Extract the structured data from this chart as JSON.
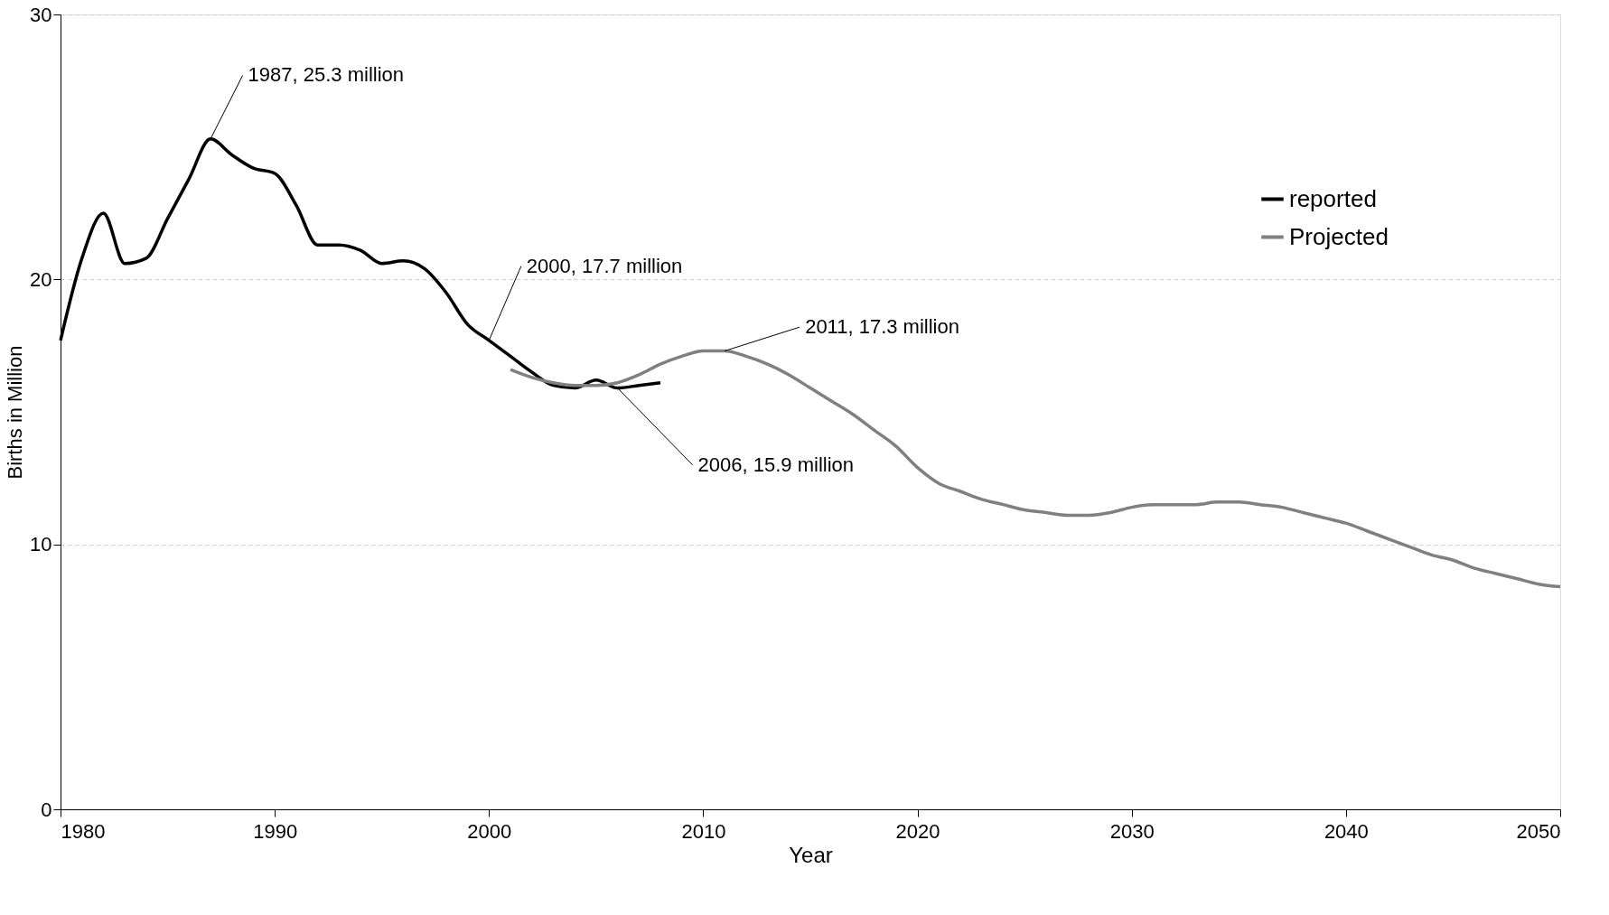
{
  "chart_data": {
    "type": "line",
    "xlabel": "Year",
    "ylabel": "Births in Million",
    "xlim": [
      1980,
      2050
    ],
    "xticks": [
      1980,
      1990,
      2000,
      2010,
      2020,
      2030,
      2040,
      2050
    ],
    "ylim": [
      0,
      30
    ],
    "yticks": [
      0,
      10,
      20,
      30
    ],
    "grid": "y",
    "legend": "top right",
    "marker": "none",
    "line_style": "solid",
    "series": [
      {
        "name": "reported",
        "color": "#000000",
        "x": [
          1980,
          1981,
          1982,
          1983,
          1984,
          1985,
          1986,
          1987,
          1988,
          1989,
          1990,
          1991,
          1992,
          1993,
          1994,
          1995,
          1996,
          1997,
          1998,
          1999,
          2000,
          2001,
          2002,
          2003,
          2004,
          2005,
          2006,
          2007,
          2008
        ],
        "values": [
          17.7,
          20.8,
          22.5,
          20.6,
          20.8,
          22.3,
          23.8,
          25.3,
          24.7,
          24.2,
          24.0,
          22.8,
          21.3,
          21.3,
          21.1,
          20.6,
          20.7,
          20.4,
          19.5,
          18.3,
          17.7,
          17.1,
          16.5,
          16.0,
          15.9,
          16.2,
          15.9,
          16.0,
          16.1
        ]
      },
      {
        "name": "Projected",
        "color": "#808080",
        "x": [
          2001,
          2002,
          2003,
          2004,
          2005,
          2006,
          2007,
          2008,
          2009,
          2010,
          2011,
          2012,
          2013,
          2014,
          2015,
          2016,
          2017,
          2018,
          2019,
          2020,
          2021,
          2022,
          2023,
          2024,
          2025,
          2026,
          2027,
          2028,
          2029,
          2030,
          2031,
          2032,
          2033,
          2034,
          2035,
          2036,
          2037,
          2038,
          2039,
          2040,
          2041,
          2042,
          2043,
          2044,
          2045,
          2046,
          2047,
          2048,
          2049,
          2050
        ],
        "values": [
          16.6,
          16.3,
          16.1,
          16.0,
          16.0,
          16.1,
          16.4,
          16.8,
          17.1,
          17.3,
          17.3,
          17.1,
          16.8,
          16.4,
          15.9,
          15.4,
          14.9,
          14.3,
          13.7,
          12.9,
          12.3,
          12.0,
          11.7,
          11.5,
          11.3,
          11.2,
          11.1,
          11.1,
          11.2,
          11.4,
          11.5,
          11.5,
          11.5,
          11.6,
          11.6,
          11.5,
          11.4,
          11.2,
          11.0,
          10.8,
          10.5,
          10.2,
          9.9,
          9.6,
          9.4,
          9.1,
          8.9,
          8.7,
          8.5,
          8.4
        ]
      }
    ],
    "annotations": [
      {
        "text": "1987, 25.3 million",
        "x": 1987,
        "y": 25.3
      },
      {
        "text": "2000, 17.7 million",
        "x": 2000,
        "y": 17.7
      },
      {
        "text": "2011, 17.3 million",
        "x": 2011,
        "y": 17.3
      },
      {
        "text": "2006, 15.9 million",
        "x": 2006,
        "y": 15.9
      }
    ]
  }
}
